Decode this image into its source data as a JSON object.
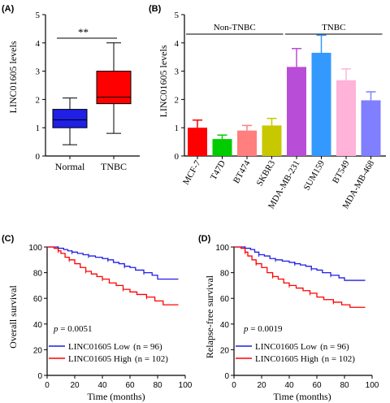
{
  "chart_data": [
    {
      "panel": "(A)",
      "type": "box",
      "ylabel": "LINC01605 levels",
      "ylim": [
        0,
        5
      ],
      "yticks": [
        "0",
        "1",
        "2",
        "3",
        "4",
        "5"
      ],
      "categories": [
        "Normal",
        "TNBC"
      ],
      "boxes": [
        {
          "name": "Normal",
          "min": 0.4,
          "q1": 1.0,
          "median": 1.28,
          "q3": 1.65,
          "max": 2.05,
          "color": "#1f1fe6"
        },
        {
          "name": "TNBC",
          "min": 0.8,
          "q1": 1.85,
          "median": 2.08,
          "q3": 3.0,
          "max": 4.0,
          "color": "#ff0000"
        }
      ],
      "significance": "**"
    },
    {
      "panel": "(B)",
      "type": "bar",
      "ylabel": "LINC01605 levels",
      "ylim": [
        0,
        5
      ],
      "yticks": [
        "0",
        "1",
        "2",
        "3",
        "4",
        "5"
      ],
      "categories": [
        "MCF-7",
        "T47D",
        "BT474",
        "SKBR3",
        "MDA-MB-231",
        "SUM159",
        "BT549",
        "MDA-MB-468"
      ],
      "values": [
        1.0,
        0.6,
        0.9,
        1.08,
        3.15,
        3.65,
        2.68,
        1.97
      ],
      "errors": [
        0.27,
        0.14,
        0.18,
        0.25,
        0.65,
        0.62,
        0.4,
        0.3
      ],
      "colors": [
        "#ff0000",
        "#00cc00",
        "#ff7f7f",
        "#c8c800",
        "#b84dd8",
        "#3399ff",
        "#ffb3d9",
        "#7f7fff"
      ],
      "groups": [
        {
          "label": "Non-TNBC",
          "from": 0,
          "to": 3
        },
        {
          "label": "TNBC",
          "from": 4,
          "to": 7
        }
      ]
    },
    {
      "panel": "(C)",
      "type": "line",
      "xlabel": "Time (months)",
      "ylabel": "Overall survival",
      "xlim": [
        0,
        100
      ],
      "ylim": [
        0,
        100
      ],
      "xticks": [
        "0",
        "20",
        "40",
        "60",
        "80",
        "100"
      ],
      "yticks": [
        "0",
        "20",
        "40",
        "60",
        "80",
        "100"
      ],
      "annotation_p": "p",
      "annotation_value": " = 0.0051",
      "series": [
        {
          "name": "LINC01605  Low",
          "n_label": "(n = 96)",
          "color": "#1f1fe6",
          "x": [
            0,
            5,
            8,
            12,
            15,
            18,
            22,
            26,
            30,
            35,
            40,
            44,
            48,
            52,
            56,
            60,
            64,
            70,
            76,
            80,
            95
          ],
          "y": [
            100,
            100,
            99,
            98,
            97,
            96,
            95,
            94,
            93,
            92,
            91,
            90,
            88,
            87,
            85,
            84,
            82,
            80,
            78,
            75,
            75
          ]
        },
        {
          "name": "LINC01605  High",
          "n_label": "(n = 102)",
          "color": "#ff0000",
          "x": [
            0,
            5,
            8,
            10,
            13,
            16,
            20,
            24,
            28,
            32,
            36,
            40,
            45,
            50,
            55,
            60,
            65,
            72,
            78,
            84,
            95
          ],
          "y": [
            100,
            99,
            97,
            95,
            92,
            90,
            87,
            84,
            81,
            79,
            77,
            75,
            72,
            70,
            67,
            65,
            63,
            61,
            58,
            55,
            55
          ]
        }
      ]
    },
    {
      "panel": "(D)",
      "type": "line",
      "xlabel": "Time (months)",
      "ylabel": "Relapse-free survival",
      "xlim": [
        0,
        100
      ],
      "ylim": [
        0,
        100
      ],
      "xticks": [
        "0",
        "20",
        "40",
        "60",
        "80",
        "100"
      ],
      "yticks": [
        "0",
        "20",
        "40",
        "60",
        "80",
        "100"
      ],
      "annotation_p": "p",
      "annotation_value": " = 0.0019",
      "series": [
        {
          "name": "LINC01605  Low",
          "n_label": "(n = 96)",
          "color": "#1f1fe6",
          "x": [
            0,
            5,
            8,
            12,
            15,
            18,
            22,
            26,
            30,
            35,
            40,
            44,
            48,
            52,
            56,
            60,
            64,
            70,
            76,
            80,
            95
          ],
          "y": [
            100,
            100,
            99,
            98,
            96,
            94,
            93,
            91,
            90,
            89,
            88,
            87,
            86,
            85,
            83,
            82,
            80,
            78,
            76,
            74,
            74
          ]
        },
        {
          "name": "LINC01605  High",
          "n_label": "(n = 102)",
          "color": "#ff0000",
          "x": [
            0,
            5,
            8,
            10,
            13,
            16,
            20,
            24,
            28,
            32,
            36,
            40,
            45,
            50,
            55,
            60,
            65,
            72,
            78,
            84,
            95
          ],
          "y": [
            100,
            99,
            96,
            93,
            90,
            87,
            84,
            80,
            77,
            75,
            72,
            70,
            68,
            66,
            64,
            61,
            59,
            57,
            55,
            53,
            53
          ]
        }
      ]
    }
  ]
}
